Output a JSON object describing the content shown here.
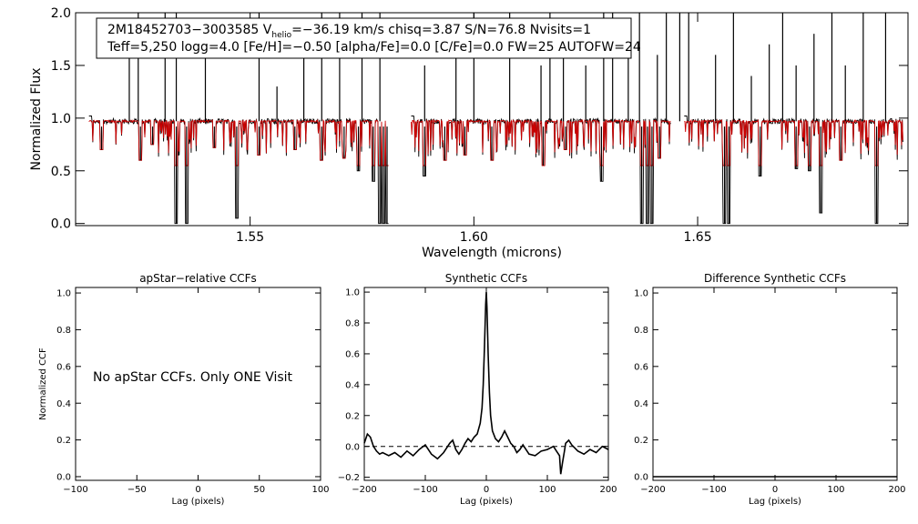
{
  "chart_data": [
    {
      "type": "line",
      "id": "spectrum",
      "title": "",
      "xlabel": "Wavelength (microns)",
      "ylabel": "Normalized Flux",
      "xlim": [
        1.511,
        1.697
      ],
      "ylim": [
        -0.02,
        2.0
      ],
      "xticks": [
        1.55,
        1.6,
        1.65
      ],
      "xtick_labels": [
        "1.55",
        "1.60",
        "1.65"
      ],
      "yticks": [
        0.0,
        0.5,
        1.0,
        1.5,
        2.0
      ],
      "ytick_labels": [
        "0.0",
        "0.5",
        "1.0",
        "1.5",
        "2.0"
      ],
      "info_box": {
        "line1": {
          "star": "2M18452703−3003585",
          "v_label": "V",
          "v_sub": "helio",
          "v_value": "=−36.19 km/s  chisq=3.87  S/N=76.8  Nvisits=1"
        },
        "line2": "Teff=5,250 logg=4.0 [Fe/H]=−0.50 [alpha/Fe]=0.0 [C/Fe]=0.0 FW=25 AUTOFW=24"
      },
      "chip_ranges": [
        [
          1.514,
          1.581
        ],
        [
          1.586,
          1.644
        ],
        [
          1.647,
          1.696
        ]
      ],
      "continuum": 0.97,
      "model_continuum": 0.97,
      "observed_color": "#000000",
      "model_color": "#cc0000",
      "deep_absorption": [
        [
          1.5168,
          0.7
        ],
        [
          1.5255,
          0.6
        ],
        [
          1.5282,
          0.75
        ],
        [
          1.5335,
          0.0
        ],
        [
          1.5358,
          0.0
        ],
        [
          1.542,
          0.72
        ],
        [
          1.547,
          0.05
        ],
        [
          1.552,
          0.65
        ],
        [
          1.56,
          0.7
        ],
        [
          1.566,
          0.6
        ],
        [
          1.571,
          0.62
        ],
        [
          1.5742,
          0.5
        ],
        [
          1.5775,
          0.4
        ],
        [
          1.579,
          0.0
        ],
        [
          1.5798,
          0.0
        ],
        [
          1.5806,
          0.0
        ],
        [
          1.589,
          0.45
        ],
        [
          1.5935,
          0.6
        ],
        [
          1.598,
          0.65
        ],
        [
          1.604,
          0.6
        ],
        [
          1.6155,
          0.55
        ],
        [
          1.6205,
          0.7
        ],
        [
          1.6285,
          0.4
        ],
        [
          1.6375,
          0.0
        ],
        [
          1.6388,
          0.0
        ],
        [
          1.6398,
          0.0
        ],
        [
          1.6415,
          0.62
        ],
        [
          1.656,
          0.0
        ],
        [
          1.657,
          0.0
        ],
        [
          1.664,
          0.45
        ],
        [
          1.672,
          0.52
        ],
        [
          1.675,
          0.5
        ],
        [
          1.6775,
          0.1
        ],
        [
          1.682,
          0.6
        ],
        [
          1.69,
          0.0
        ]
      ],
      "emission_spikes": [
        [
          1.523,
          1.6
        ],
        [
          1.525,
          2.0
        ],
        [
          1.531,
          2.0
        ],
        [
          1.5335,
          2.0
        ],
        [
          1.54,
          1.6
        ],
        [
          1.552,
          2.0
        ],
        [
          1.556,
          1.3
        ],
        [
          1.562,
          1.6
        ],
        [
          1.566,
          2.0
        ],
        [
          1.57,
          2.0
        ],
        [
          1.575,
          2.0
        ],
        [
          1.579,
          2.0
        ],
        [
          1.589,
          1.5
        ],
        [
          1.596,
          1.8
        ],
        [
          1.6,
          2.0
        ],
        [
          1.608,
          2.0
        ],
        [
          1.615,
          1.5
        ],
        [
          1.617,
          2.0
        ],
        [
          1.62,
          1.7
        ],
        [
          1.625,
          1.5
        ],
        [
          1.629,
          2.0
        ],
        [
          1.631,
          2.0
        ],
        [
          1.6345,
          1.8
        ],
        [
          1.637,
          2.0
        ],
        [
          1.641,
          1.6
        ],
        [
          1.643,
          2.0
        ],
        [
          1.646,
          2.0
        ],
        [
          1.648,
          2.0
        ],
        [
          1.654,
          1.6
        ],
        [
          1.658,
          2.0
        ],
        [
          1.662,
          1.4
        ],
        [
          1.666,
          1.7
        ],
        [
          1.669,
          2.0
        ],
        [
          1.672,
          1.5
        ],
        [
          1.676,
          1.8
        ],
        [
          1.68,
          2.0
        ],
        [
          1.683,
          1.5
        ],
        [
          1.687,
          2.0
        ],
        [
          1.692,
          2.0
        ]
      ]
    },
    {
      "type": "line",
      "id": "apstar",
      "title": "apStar−relative CCFs",
      "xlabel": "Lag (pixels)",
      "ylabel": "Normalized CCF",
      "xlim": [
        -100,
        100
      ],
      "ylim": [
        -0.02,
        1.03
      ],
      "xticks": [
        -100,
        -50,
        0,
        50,
        100
      ],
      "xtick_labels": [
        "−100",
        "−50",
        "0",
        "50",
        "100"
      ],
      "yticks": [
        0.0,
        0.2,
        0.4,
        0.6,
        0.8,
        1.0
      ],
      "ytick_labels": [
        "0.0",
        "0.2",
        "0.4",
        "0.6",
        "0.8",
        "1.0"
      ],
      "message": "No apStar CCFs.  Only ONE Visit",
      "series": []
    },
    {
      "type": "line",
      "id": "synthetic",
      "title": "Synthetic CCFs",
      "xlabel": "Lag (pixels)",
      "ylabel": "",
      "xlim": [
        -200,
        200
      ],
      "ylim": [
        -0.22,
        1.03
      ],
      "xticks": [
        -200,
        -100,
        0,
        100,
        200
      ],
      "xtick_labels": [
        "−200",
        "−100",
        "0",
        "100",
        "200"
      ],
      "yticks": [
        -0.2,
        0.0,
        0.2,
        0.4,
        0.6,
        0.8,
        1.0
      ],
      "ytick_labels": [
        "−0.2",
        "0.0",
        "0.2",
        "0.4",
        "0.6",
        "0.8",
        "1.0"
      ],
      "baseline": 0.0,
      "series": [
        {
          "x": [
            -200,
            -195,
            -190,
            -185,
            -180,
            -175,
            -170,
            -160,
            -150,
            -140,
            -130,
            -120,
            -110,
            -100,
            -90,
            -80,
            -70,
            -60,
            -55,
            -50,
            -45,
            -40,
            -35,
            -30,
            -25,
            -20,
            -15,
            -10,
            -7,
            -5,
            -3,
            -1,
            0,
            1,
            3,
            5,
            7,
            10,
            15,
            20,
            25,
            30,
            35,
            40,
            45,
            50,
            55,
            60,
            70,
            80,
            90,
            100,
            110,
            115,
            120,
            122,
            125,
            128,
            130,
            135,
            140,
            150,
            160,
            170,
            180,
            190,
            200
          ],
          "y": [
            0.02,
            0.08,
            0.06,
            0.0,
            -0.03,
            -0.05,
            -0.04,
            -0.06,
            -0.04,
            -0.07,
            -0.03,
            -0.06,
            -0.02,
            0.01,
            -0.05,
            -0.08,
            -0.04,
            0.02,
            0.04,
            -0.02,
            -0.05,
            -0.02,
            0.02,
            0.05,
            0.03,
            0.06,
            0.08,
            0.15,
            0.25,
            0.4,
            0.65,
            0.92,
            1.0,
            0.9,
            0.6,
            0.35,
            0.2,
            0.1,
            0.05,
            0.03,
            0.06,
            0.1,
            0.06,
            0.02,
            0.0,
            -0.04,
            -0.02,
            0.01,
            -0.05,
            -0.06,
            -0.03,
            -0.02,
            0.0,
            -0.03,
            -0.06,
            -0.18,
            -0.1,
            -0.03,
            0.02,
            0.04,
            0.01,
            -0.03,
            -0.05,
            -0.02,
            -0.04,
            0.0,
            -0.02
          ]
        }
      ]
    },
    {
      "type": "line",
      "id": "difference",
      "title": "Difference Synthetic CCFs",
      "xlabel": "Lag (pixels)",
      "ylabel": "",
      "xlim": [
        -200,
        200
      ],
      "ylim": [
        -0.02,
        1.03
      ],
      "xticks": [
        -200,
        -100,
        0,
        100,
        200
      ],
      "xtick_labels": [
        "−200",
        "−100",
        "0",
        "100",
        "200"
      ],
      "yticks": [
        0.0,
        0.2,
        0.4,
        0.6,
        0.8,
        1.0
      ],
      "ytick_labels": [
        "0.0",
        "0.2",
        "0.4",
        "0.6",
        "0.8",
        "1.0"
      ],
      "series": [
        {
          "x": [
            -200,
            200
          ],
          "y": [
            0.0,
            0.0
          ]
        }
      ]
    }
  ]
}
